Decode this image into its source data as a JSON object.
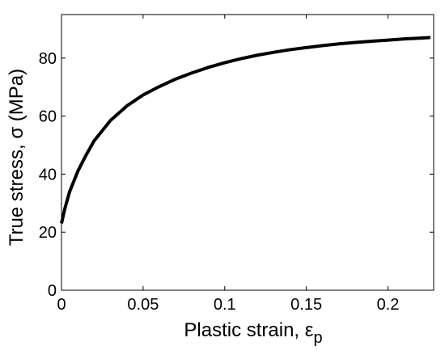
{
  "chart_data": {
    "type": "line",
    "title": "",
    "xlabel": "Plastic strain, ε",
    "xlabel_subscript": "p",
    "ylabel": "True stress, σ (MPa)",
    "xlim": [
      0,
      0.228
    ],
    "ylim": [
      0,
      95
    ],
    "x_ticks": [
      0,
      0.05,
      0.1,
      0.15,
      0.2
    ],
    "x_tick_labels": [
      "0",
      "0.05",
      "0.1",
      "0.15",
      "0.2"
    ],
    "y_ticks": [
      0,
      20,
      40,
      60,
      80
    ],
    "y_tick_labels": [
      "0",
      "20",
      "40",
      "60",
      "80"
    ],
    "grid": false,
    "legend": "none",
    "line_color": "#000000",
    "series": [
      {
        "x": [
          0,
          0.002,
          0.005,
          0.01,
          0.015,
          0.02,
          0.03,
          0.04,
          0.05,
          0.06,
          0.07,
          0.08,
          0.09,
          0.1,
          0.11,
          0.12,
          0.13,
          0.14,
          0.15,
          0.16,
          0.17,
          0.18,
          0.19,
          0.2,
          0.21,
          0.22,
          0.226
        ],
        "y": [
          23,
          28,
          34,
          41,
          46.5,
          51.5,
          58.5,
          63.5,
          67.3,
          70.2,
          72.8,
          74.9,
          76.8,
          78.4,
          79.8,
          81,
          82,
          82.9,
          83.6,
          84.3,
          84.9,
          85.4,
          85.8,
          86.2,
          86.6,
          86.9,
          87.1
        ]
      }
    ]
  }
}
